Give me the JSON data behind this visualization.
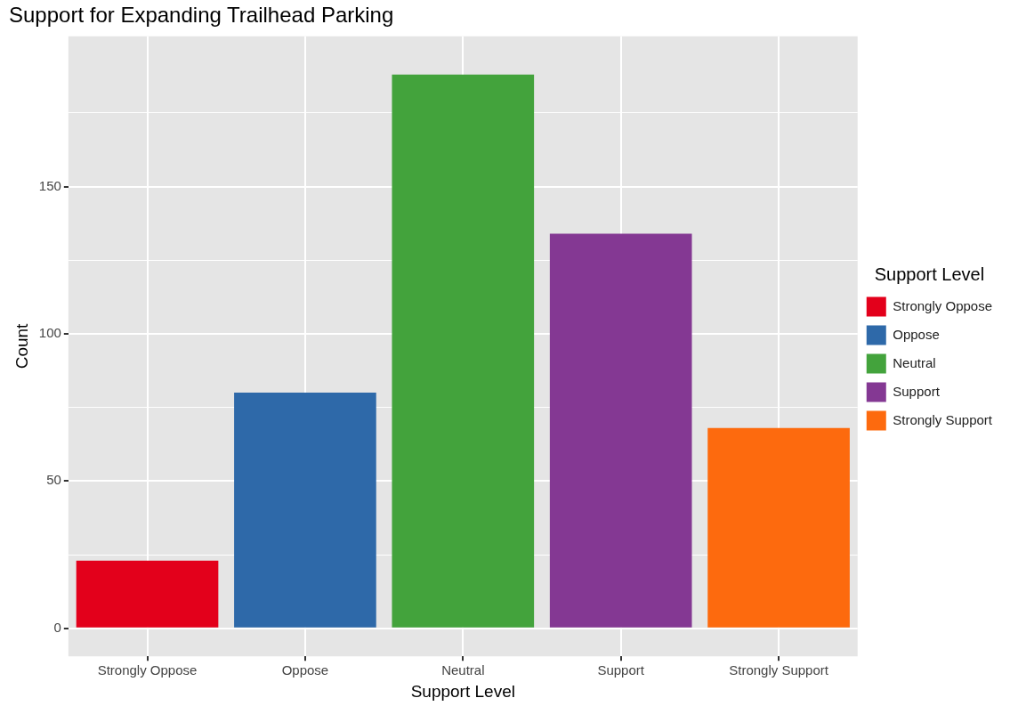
{
  "chart_data": {
    "type": "bar",
    "title": "Support for Expanding Trailhead Parking",
    "xlabel": "Support Level",
    "ylabel": "Count",
    "legend_title": "Support Level",
    "categories": [
      "Strongly Oppose",
      "Oppose",
      "Neutral",
      "Support",
      "Strongly Support"
    ],
    "series": [
      {
        "name": "Strongly Oppose",
        "color": "#e3001b",
        "values": [
          23,
          null,
          null,
          null,
          null
        ]
      },
      {
        "name": "Oppose",
        "color": "#2e69a9",
        "values": [
          null,
          80,
          null,
          null,
          null
        ]
      },
      {
        "name": "Neutral",
        "color": "#43a33c",
        "values": [
          null,
          null,
          188,
          null,
          null
        ]
      },
      {
        "name": "Support",
        "color": "#843893",
        "values": [
          null,
          null,
          null,
          134,
          null
        ]
      },
      {
        "name": "Strongly Support",
        "color": "#fd6a0e",
        "values": [
          null,
          null,
          null,
          null,
          68
        ]
      }
    ],
    "ylim": [
      -9.5,
      201
    ],
    "yticks": [
      0,
      {
        "value": 25,
        "label": null
      },
      50,
      {
        "value": 75,
        "label": null
      },
      100,
      {
        "value": 125,
        "label": null
      },
      150,
      {
        "value": 175,
        "label": null
      }
    ],
    "grid": true,
    "legend": "right"
  }
}
